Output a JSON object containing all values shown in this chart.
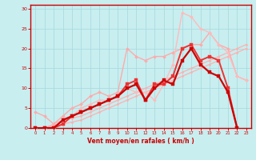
{
  "title": "",
  "xlabel": "Vent moyen/en rafales ( km/h )",
  "ylabel": "",
  "bg_color": "#c8eef0",
  "grid_color": "#a8dce0",
  "axis_color": "#cc0000",
  "label_color": "#cc0000",
  "xlim": [
    -0.5,
    23.5
  ],
  "ylim": [
    0,
    31
  ],
  "yticks": [
    0,
    5,
    10,
    15,
    20,
    25,
    30
  ],
  "xticks": [
    0,
    1,
    2,
    3,
    4,
    5,
    6,
    7,
    8,
    9,
    10,
    11,
    12,
    13,
    14,
    15,
    16,
    17,
    18,
    19,
    20,
    21,
    22,
    23
  ],
  "series": [
    {
      "x": [
        0,
        1,
        2,
        3,
        4,
        5,
        6,
        7,
        8,
        9,
        10,
        11,
        12,
        13,
        14,
        15,
        16,
        17,
        18,
        19,
        20,
        21,
        22,
        23
      ],
      "y": [
        0,
        0,
        0.5,
        1,
        1.5,
        2,
        3,
        4,
        5,
        6,
        7,
        8,
        9,
        10,
        11,
        12,
        13,
        14,
        15,
        16,
        17,
        18,
        19,
        20
      ],
      "color": "#ffb0b0",
      "lw": 0.9,
      "marker": "D",
      "ms": 1.5
    },
    {
      "x": [
        0,
        1,
        2,
        3,
        4,
        5,
        6,
        7,
        8,
        9,
        10,
        11,
        12,
        13,
        14,
        15,
        16,
        17,
        18,
        19,
        20,
        21,
        22,
        23
      ],
      "y": [
        0,
        0,
        1,
        2,
        2.5,
        3,
        4,
        5,
        6,
        7,
        8,
        9,
        10,
        11,
        12,
        13,
        14,
        15,
        16,
        17,
        18,
        19,
        20,
        21
      ],
      "color": "#ffb0b0",
      "lw": 0.9,
      "marker": "D",
      "ms": 1.5
    },
    {
      "x": [
        0,
        1,
        2,
        3,
        4,
        5,
        6,
        7,
        8,
        9,
        10,
        11,
        12,
        13,
        14,
        15,
        16,
        17,
        18,
        19,
        20,
        21,
        22,
        23
      ],
      "y": [
        4,
        3,
        1,
        3,
        5,
        6,
        8,
        9,
        8,
        9,
        20,
        18,
        17,
        18,
        18,
        19,
        20,
        21,
        21,
        24,
        21,
        20,
        13,
        12
      ],
      "color": "#ffaaaa",
      "lw": 1.0,
      "marker": "D",
      "ms": 2
    },
    {
      "x": [
        0,
        1,
        2,
        3,
        4,
        5,
        6,
        7,
        8,
        9,
        10,
        11,
        12,
        13,
        14,
        15,
        16,
        17,
        18,
        19,
        20,
        21,
        22,
        23
      ],
      "y": [
        0,
        0,
        0,
        1,
        3,
        5,
        6,
        7,
        7,
        8,
        10,
        9,
        9,
        7,
        11,
        16,
        29,
        28,
        25,
        24,
        21,
        19,
        13,
        12
      ],
      "color": "#ffbbbb",
      "lw": 1.0,
      "marker": "D",
      "ms": 2
    },
    {
      "x": [
        0,
        1,
        2,
        3,
        4,
        5,
        6,
        7,
        8,
        9,
        10,
        11,
        12,
        13,
        14,
        15,
        16,
        17,
        18,
        19,
        20,
        21,
        22,
        23
      ],
      "y": [
        0,
        0,
        0,
        1,
        3,
        4,
        5,
        6,
        7,
        8,
        11,
        12,
        7,
        11,
        11,
        13,
        20,
        21,
        17,
        18,
        17,
        10,
        0,
        null
      ],
      "color": "#ee3333",
      "lw": 1.4,
      "marker": "s",
      "ms": 2.5
    },
    {
      "x": [
        0,
        1,
        2,
        3,
        4,
        5,
        6,
        7,
        8,
        9,
        10,
        11,
        12,
        13,
        14,
        15,
        16,
        17,
        18,
        19,
        20,
        21,
        22,
        23
      ],
      "y": [
        0,
        0,
        0,
        2,
        3,
        4,
        5,
        6,
        7,
        8,
        10,
        11,
        7,
        10,
        12,
        11,
        17,
        20,
        16,
        14,
        13,
        9,
        0,
        null
      ],
      "color": "#cc0000",
      "lw": 1.6,
      "marker": "s",
      "ms": 2.5
    }
  ]
}
